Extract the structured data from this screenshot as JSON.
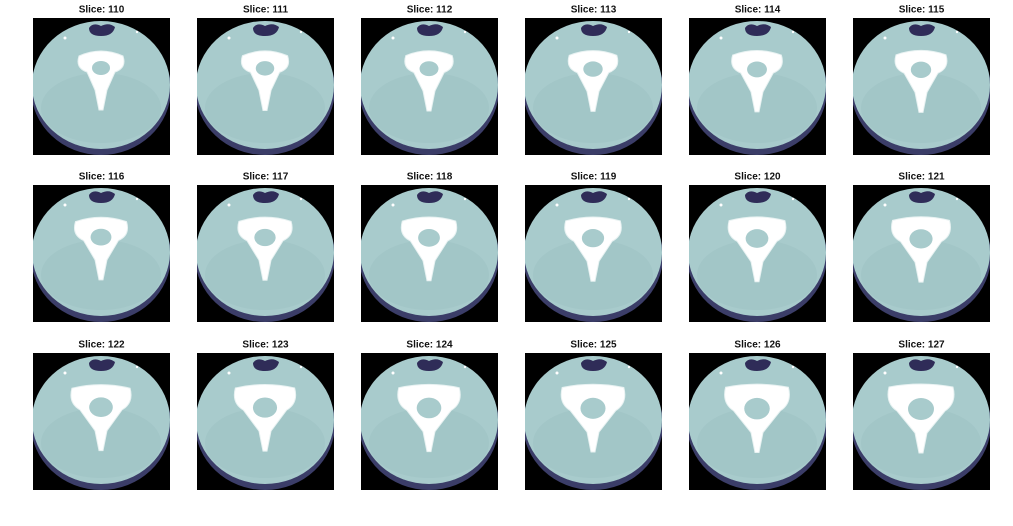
{
  "slices": [
    "Slice: 110",
    "Slice: 111",
    "Slice: 112",
    "Slice: 113",
    "Slice: 114",
    "Slice: 115",
    "Slice: 116",
    "Slice: 117",
    "Slice: 118",
    "Slice: 119",
    "Slice: 120",
    "Slice: 121",
    "Slice: 122",
    "Slice: 123",
    "Slice: 124",
    "Slice: 125",
    "Slice: 126",
    "Slice: 127"
  ]
}
